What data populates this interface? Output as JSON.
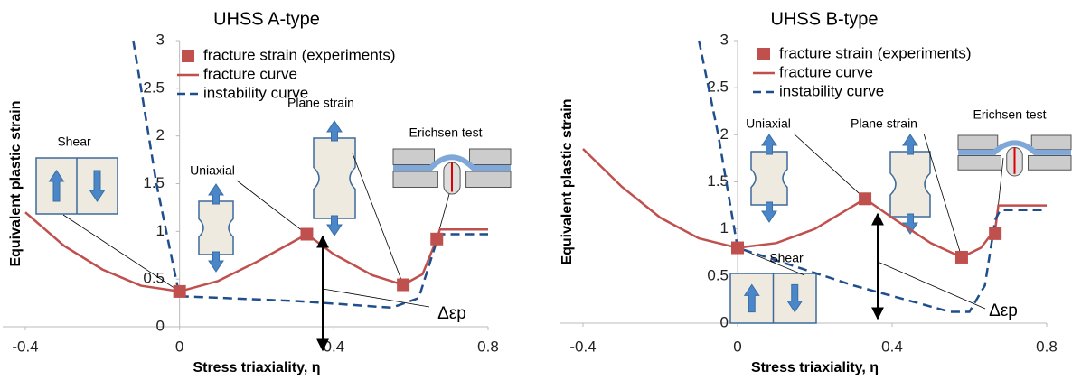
{
  "chart_data": [
    {
      "type": "line",
      "title": "UHSS A-type",
      "x_label": "Stress triaxiality, η",
      "y_label": "Equivalent plastic strain",
      "xlim": [
        -0.4,
        0.8
      ],
      "ylim": [
        0,
        3
      ],
      "xticks": [
        -0.4,
        0,
        0.4,
        0.8
      ],
      "yticks": [
        0,
        0.5,
        1,
        1.5,
        2,
        2.5,
        3
      ],
      "series": [
        {
          "name": "fracture strain (experiments)",
          "type": "scatter",
          "color": "#c0504d",
          "x": [
            0,
            0.33,
            0.58,
            0.667
          ],
          "values": [
            0.37,
            0.97,
            0.44,
            0.92
          ]
        },
        {
          "name": "fracture curve",
          "type": "line",
          "color": "#c0504d",
          "x": [
            -0.4,
            -0.3,
            -0.2,
            -0.1,
            0,
            0.1,
            0.2,
            0.33,
            0.4,
            0.5,
            0.58,
            0.63,
            0.667,
            0.675,
            0.8
          ],
          "values": [
            1.2,
            0.85,
            0.6,
            0.43,
            0.37,
            0.48,
            0.68,
            0.97,
            0.76,
            0.54,
            0.44,
            0.55,
            0.92,
            1.02,
            1.02
          ]
        },
        {
          "name": "instability curve",
          "type": "dashed",
          "color": "#1f4e8c",
          "x": [
            -0.12,
            -0.06,
            0,
            0.3,
            0.55,
            0.62,
            0.667,
            0.68,
            0.8
          ],
          "values": [
            3,
            1.5,
            0.32,
            0.27,
            0.2,
            0.3,
            0.9,
            0.97,
            0.97
          ]
        }
      ],
      "annotations": [
        "Shear",
        "Uniaxial",
        "Plane strain",
        "Erichsen test",
        "Δεp"
      ]
    },
    {
      "type": "line",
      "title": "UHSS B-type",
      "x_label": "Stress triaxiality, η",
      "y_label": "Equivalent plastic strain",
      "xlim": [
        -0.4,
        0.8
      ],
      "ylim": [
        0,
        3
      ],
      "xticks": [
        -0.4,
        0,
        0.4,
        0.8
      ],
      "yticks": [
        0,
        0.5,
        1,
        1.5,
        2,
        2.5,
        3
      ],
      "series": [
        {
          "name": "fracture strain (experiments)",
          "type": "scatter",
          "color": "#c0504d",
          "x": [
            0,
            0.33,
            0.58,
            0.667
          ],
          "values": [
            0.8,
            1.32,
            0.7,
            0.95
          ]
        },
        {
          "name": "fracture curve",
          "type": "line",
          "color": "#c0504d",
          "x": [
            -0.4,
            -0.3,
            -0.2,
            -0.1,
            0,
            0.1,
            0.2,
            0.33,
            0.4,
            0.5,
            0.58,
            0.63,
            0.667,
            0.675,
            0.8
          ],
          "values": [
            1.85,
            1.45,
            1.12,
            0.9,
            0.8,
            0.85,
            1.0,
            1.32,
            1.12,
            0.85,
            0.7,
            0.8,
            1.0,
            1.25,
            1.25
          ]
        },
        {
          "name": "instability curve",
          "type": "dashed",
          "color": "#1f4e8c",
          "x": [
            -0.1,
            -0.05,
            0,
            0.3,
            0.55,
            0.6,
            0.64,
            0.667,
            0.68,
            0.8
          ],
          "values": [
            3,
            2,
            0.8,
            0.4,
            0.12,
            0.12,
            0.4,
            1.1,
            1.2,
            1.2
          ]
        }
      ],
      "annotations": [
        "Uniaxial",
        "Plane strain",
        "Erichsen test",
        "Shear",
        "Δεp"
      ]
    }
  ]
}
